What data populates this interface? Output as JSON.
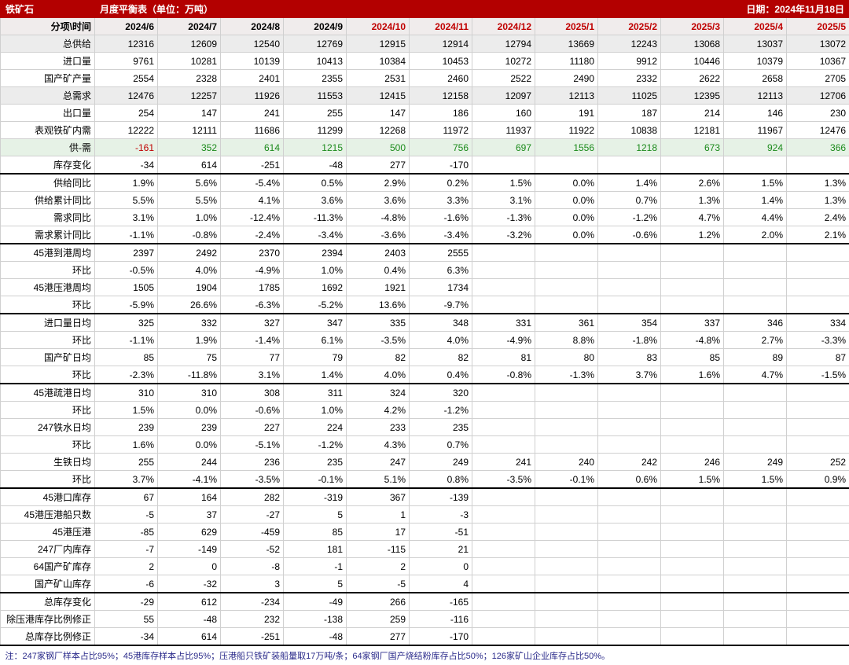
{
  "header": {
    "product": "铁矿石",
    "title": "月度平衡表（单位：万吨）",
    "date_label": "日期：",
    "date_value": "2024年11月18日"
  },
  "corner_label": "分项\\时间",
  "columns": [
    "2024/6",
    "2024/7",
    "2024/8",
    "2024/9",
    "2024/10",
    "2024/11",
    "2024/12",
    "2025/1",
    "2025/2",
    "2025/3",
    "2025/4",
    "2025/5"
  ],
  "forecast_start_index": 4,
  "rows": [
    {
      "label": "总供给",
      "shade": true,
      "values": [
        "12316",
        "12609",
        "12540",
        "12769",
        "12915",
        "12914",
        "12794",
        "13669",
        "12243",
        "13068",
        "13037",
        "13072"
      ]
    },
    {
      "label": "进口量",
      "values": [
        "9761",
        "10281",
        "10139",
        "10413",
        "10384",
        "10453",
        "10272",
        "11180",
        "9912",
        "10446",
        "10379",
        "10367"
      ]
    },
    {
      "label": "国产矿产量",
      "values": [
        "2554",
        "2328",
        "2401",
        "2355",
        "2531",
        "2460",
        "2522",
        "2490",
        "2332",
        "2622",
        "2658",
        "2705"
      ]
    },
    {
      "label": "总需求",
      "shade": true,
      "values": [
        "12476",
        "12257",
        "11926",
        "11553",
        "12415",
        "12158",
        "12097",
        "12113",
        "11025",
        "12395",
        "12113",
        "12706"
      ]
    },
    {
      "label": "出口量",
      "values": [
        "254",
        "147",
        "241",
        "255",
        "147",
        "186",
        "160",
        "191",
        "187",
        "214",
        "146",
        "230"
      ]
    },
    {
      "label": "表观铁矿内需",
      "values": [
        "12222",
        "12111",
        "11686",
        "11299",
        "12268",
        "11972",
        "11937",
        "11922",
        "10838",
        "12181",
        "11967",
        "12476"
      ]
    },
    {
      "label": "供-需",
      "light_green": true,
      "color_sign": true,
      "values": [
        "-161",
        "352",
        "614",
        "1215",
        "500",
        "756",
        "697",
        "1556",
        "1218",
        "673",
        "924",
        "366"
      ]
    },
    {
      "label": "库存变化",
      "thick_bottom": true,
      "values": [
        "-34",
        "614",
        "-251",
        "-48",
        "277",
        "-170",
        "",
        "",
        "",
        "",
        "",
        ""
      ]
    },
    {
      "label": "供给同比",
      "values": [
        "1.9%",
        "5.6%",
        "-5.4%",
        "0.5%",
        "2.9%",
        "0.2%",
        "1.5%",
        "0.0%",
        "1.4%",
        "2.6%",
        "1.5%",
        "1.3%"
      ]
    },
    {
      "label": "供给累计同比",
      "values": [
        "5.5%",
        "5.5%",
        "4.1%",
        "3.6%",
        "3.6%",
        "3.3%",
        "3.1%",
        "0.0%",
        "0.7%",
        "1.3%",
        "1.4%",
        "1.3%"
      ]
    },
    {
      "label": "需求同比",
      "values": [
        "3.1%",
        "1.0%",
        "-12.4%",
        "-11.3%",
        "-4.8%",
        "-1.6%",
        "-1.3%",
        "0.0%",
        "-1.2%",
        "4.7%",
        "4.4%",
        "2.4%"
      ]
    },
    {
      "label": "需求累计同比",
      "thick_bottom": true,
      "values": [
        "-1.1%",
        "-0.8%",
        "-2.4%",
        "-3.4%",
        "-3.6%",
        "-3.4%",
        "-3.2%",
        "0.0%",
        "-0.6%",
        "1.2%",
        "2.0%",
        "2.1%"
      ]
    },
    {
      "label": "45港到港周均",
      "values": [
        "2397",
        "2492",
        "2370",
        "2394",
        "2403",
        "2555",
        "",
        "",
        "",
        "",
        "",
        ""
      ]
    },
    {
      "label": "环比",
      "values": [
        "-0.5%",
        "4.0%",
        "-4.9%",
        "1.0%",
        "0.4%",
        "6.3%",
        "",
        "",
        "",
        "",
        "",
        ""
      ]
    },
    {
      "label": "45港压港周均",
      "values": [
        "1505",
        "1904",
        "1785",
        "1692",
        "1921",
        "1734",
        "",
        "",
        "",
        "",
        "",
        ""
      ]
    },
    {
      "label": "环比",
      "thick_bottom": true,
      "values": [
        "-5.9%",
        "26.6%",
        "-6.3%",
        "-5.2%",
        "13.6%",
        "-9.7%",
        "",
        "",
        "",
        "",
        "",
        ""
      ]
    },
    {
      "label": "进口量日均",
      "values": [
        "325",
        "332",
        "327",
        "347",
        "335",
        "348",
        "331",
        "361",
        "354",
        "337",
        "346",
        "334"
      ]
    },
    {
      "label": "环比",
      "values": [
        "-1.1%",
        "1.9%",
        "-1.4%",
        "6.1%",
        "-3.5%",
        "4.0%",
        "-4.9%",
        "8.8%",
        "-1.8%",
        "-4.8%",
        "2.7%",
        "-3.3%"
      ]
    },
    {
      "label": "国产矿日均",
      "values": [
        "85",
        "75",
        "77",
        "79",
        "82",
        "82",
        "81",
        "80",
        "83",
        "85",
        "89",
        "87"
      ]
    },
    {
      "label": "环比",
      "thick_bottom": true,
      "values": [
        "-2.3%",
        "-11.8%",
        "3.1%",
        "1.4%",
        "4.0%",
        "0.4%",
        "-0.8%",
        "-1.3%",
        "3.7%",
        "1.6%",
        "4.7%",
        "-1.5%"
      ]
    },
    {
      "label": "45港疏港日均",
      "values": [
        "310",
        "310",
        "308",
        "311",
        "324",
        "320",
        "",
        "",
        "",
        "",
        "",
        ""
      ]
    },
    {
      "label": "环比",
      "values": [
        "1.5%",
        "0.0%",
        "-0.6%",
        "1.0%",
        "4.2%",
        "-1.2%",
        "",
        "",
        "",
        "",
        "",
        ""
      ]
    },
    {
      "label": "247铁水日均",
      "values": [
        "239",
        "239",
        "227",
        "224",
        "233",
        "235",
        "",
        "",
        "",
        "",
        "",
        ""
      ]
    },
    {
      "label": "环比",
      "values": [
        "1.6%",
        "0.0%",
        "-5.1%",
        "-1.2%",
        "4.3%",
        "0.7%",
        "",
        "",
        "",
        "",
        "",
        ""
      ]
    },
    {
      "label": "生铁日均",
      "values": [
        "255",
        "244",
        "236",
        "235",
        "247",
        "249",
        "241",
        "240",
        "242",
        "246",
        "249",
        "252"
      ]
    },
    {
      "label": "环比",
      "thick_bottom": true,
      "values": [
        "3.7%",
        "-4.1%",
        "-3.5%",
        "-0.1%",
        "5.1%",
        "0.8%",
        "-3.5%",
        "-0.1%",
        "0.6%",
        "1.5%",
        "1.5%",
        "0.9%"
      ]
    },
    {
      "label": "45港口库存",
      "values": [
        "67",
        "164",
        "282",
        "-319",
        "367",
        "-139",
        "",
        "",
        "",
        "",
        "",
        ""
      ]
    },
    {
      "label": "45港压港船只数",
      "values": [
        "-5",
        "37",
        "-27",
        "5",
        "1",
        "-3",
        "",
        "",
        "",
        "",
        "",
        ""
      ]
    },
    {
      "label": "45港压港",
      "values": [
        "-85",
        "629",
        "-459",
        "85",
        "17",
        "-51",
        "",
        "",
        "",
        "",
        "",
        ""
      ]
    },
    {
      "label": "247厂内库存",
      "values": [
        "-7",
        "-149",
        "-52",
        "181",
        "-115",
        "21",
        "",
        "",
        "",
        "",
        "",
        ""
      ]
    },
    {
      "label": "64国产矿库存",
      "values": [
        "2",
        "0",
        "-8",
        "-1",
        "2",
        "0",
        "",
        "",
        "",
        "",
        "",
        ""
      ]
    },
    {
      "label": "国产矿山库存",
      "thick_bottom": true,
      "values": [
        "-6",
        "-32",
        "3",
        "5",
        "-5",
        "4",
        "",
        "",
        "",
        "",
        "",
        ""
      ]
    },
    {
      "label": "总库存变化",
      "values": [
        "-29",
        "612",
        "-234",
        "-49",
        "266",
        "-165",
        "",
        "",
        "",
        "",
        "",
        ""
      ]
    },
    {
      "label": "除压港库存比例修正",
      "values": [
        "55",
        "-48",
        "232",
        "-138",
        "259",
        "-116",
        "",
        "",
        "",
        "",
        "",
        ""
      ]
    },
    {
      "label": "总库存比例修正",
      "thick_bottom": true,
      "values": [
        "-34",
        "614",
        "-251",
        "-48",
        "277",
        "-170",
        "",
        "",
        "",
        "",
        "",
        ""
      ]
    }
  ],
  "footnote": "注：247家钢厂样本占比95%；45港库存样本占比95%；压港船只铁矿装船量取17万吨/条；64家钢厂国产烧结粉库存占比50%；126家矿山企业库存占比50%。"
}
